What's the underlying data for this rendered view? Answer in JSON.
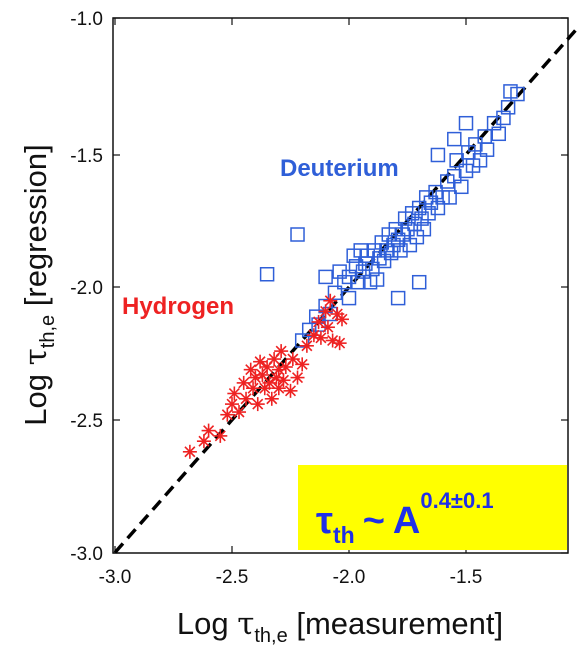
{
  "colors": {
    "hydrogen": "#ee2222",
    "deuterium": "#2f5fd8",
    "annotation_box": "#ffff00",
    "annotation_text": "#1f2fe8",
    "fit_line": "#000000"
  },
  "chart_data": {
    "type": "scatter",
    "xlabel": {
      "prefix": "Log ",
      "symbol": "τ",
      "subscript": "th,e",
      "suffix": " [measurement]"
    },
    "ylabel": {
      "prefix": "Log ",
      "symbol": "τ",
      "subscript": "th,e",
      "suffix": " [regression]"
    },
    "xlim": [
      -3.0,
      -1.0
    ],
    "ylim": [
      -3.0,
      -1.0
    ],
    "x_ticks": [
      "-3.0",
      "-2.5",
      "-2.0",
      "-1.5"
    ],
    "y_ticks": [
      "-1.0",
      "-1.5",
      "-2.0",
      "-2.5",
      "-3.0"
    ],
    "grid": false,
    "fit_line": {
      "style": "dashed",
      "points": [
        [
          -3.0,
          -3.0
        ],
        [
          -1.0,
          -1.0
        ]
      ]
    },
    "series": [
      {
        "name": "Hydrogen",
        "marker": "asterisk",
        "points": [
          [
            -2.68,
            -2.62
          ],
          [
            -2.62,
            -2.58
          ],
          [
            -2.6,
            -2.54
          ],
          [
            -2.55,
            -2.56
          ],
          [
            -2.52,
            -2.48
          ],
          [
            -2.5,
            -2.44
          ],
          [
            -2.49,
            -2.4
          ],
          [
            -2.47,
            -2.47
          ],
          [
            -2.45,
            -2.36
          ],
          [
            -2.44,
            -2.42
          ],
          [
            -2.42,
            -2.31
          ],
          [
            -2.41,
            -2.38
          ],
          [
            -2.4,
            -2.34
          ],
          [
            -2.39,
            -2.44
          ],
          [
            -2.38,
            -2.28
          ],
          [
            -2.37,
            -2.33
          ],
          [
            -2.36,
            -2.38
          ],
          [
            -2.35,
            -2.3
          ],
          [
            -2.34,
            -2.36
          ],
          [
            -2.33,
            -2.42
          ],
          [
            -2.32,
            -2.27
          ],
          [
            -2.31,
            -2.34
          ],
          [
            -2.3,
            -2.38
          ],
          [
            -2.3,
            -2.31
          ],
          [
            -2.29,
            -2.24
          ],
          [
            -2.28,
            -2.35
          ],
          [
            -2.27,
            -2.3
          ],
          [
            -2.25,
            -2.39
          ],
          [
            -2.24,
            -2.27
          ],
          [
            -2.22,
            -2.34
          ],
          [
            -2.2,
            -2.29
          ],
          [
            -2.18,
            -2.22
          ],
          [
            -2.15,
            -2.18
          ],
          [
            -2.13,
            -2.13
          ],
          [
            -2.12,
            -2.19
          ],
          [
            -2.1,
            -2.09
          ],
          [
            -2.09,
            -2.15
          ],
          [
            -2.08,
            -2.05
          ],
          [
            -2.07,
            -2.2
          ],
          [
            -2.05,
            -2.1
          ],
          [
            -2.04,
            -2.21
          ],
          [
            -2.03,
            -2.12
          ]
        ]
      },
      {
        "name": "Deuterium",
        "marker": "square",
        "points": [
          [
            -2.2,
            -2.2
          ],
          [
            -2.17,
            -2.16
          ],
          [
            -2.14,
            -2.11
          ],
          [
            -2.13,
            -2.14
          ],
          [
            -2.1,
            -1.96
          ],
          [
            -2.1,
            -2.07
          ],
          [
            -2.08,
            -2.1
          ],
          [
            -2.06,
            -2.02
          ],
          [
            -2.04,
            -1.94
          ],
          [
            -2.02,
            -1.98
          ],
          [
            -2.0,
            -1.96
          ],
          [
            -2.0,
            -2.04
          ],
          [
            -1.98,
            -1.88
          ],
          [
            -1.97,
            -1.92
          ],
          [
            -1.96,
            -1.98
          ],
          [
            -1.95,
            -1.86
          ],
          [
            -1.94,
            -1.94
          ],
          [
            -1.93,
            -1.91
          ],
          [
            -1.92,
            -1.88
          ],
          [
            -1.91,
            -1.98
          ],
          [
            -1.9,
            -1.93
          ],
          [
            -1.89,
            -1.86
          ],
          [
            -1.88,
            -1.97
          ],
          [
            -1.87,
            -1.89
          ],
          [
            -1.86,
            -1.83
          ],
          [
            -1.85,
            -1.9
          ],
          [
            -1.84,
            -1.86
          ],
          [
            -1.83,
            -1.8
          ],
          [
            -1.82,
            -1.87
          ],
          [
            -1.81,
            -1.84
          ],
          [
            -1.8,
            -1.78
          ],
          [
            -1.79,
            -1.82
          ],
          [
            -1.78,
            -1.86
          ],
          [
            -1.77,
            -1.8
          ],
          [
            -1.76,
            -1.74
          ],
          [
            -1.75,
            -1.78
          ],
          [
            -1.74,
            -1.84
          ],
          [
            -1.73,
            -1.72
          ],
          [
            -1.72,
            -1.76
          ],
          [
            -1.71,
            -1.81
          ],
          [
            -1.7,
            -1.7
          ],
          [
            -1.69,
            -1.74
          ],
          [
            -1.68,
            -1.78
          ],
          [
            -1.67,
            -1.66
          ],
          [
            -1.66,
            -1.72
          ],
          [
            -1.65,
            -1.68
          ],
          [
            -1.63,
            -1.64
          ],
          [
            -1.62,
            -1.7
          ],
          [
            -1.6,
            -1.66
          ],
          [
            -1.58,
            -1.6
          ],
          [
            -1.57,
            -1.66
          ],
          [
            -1.55,
            -1.58
          ],
          [
            -1.54,
            -1.52
          ],
          [
            -1.52,
            -1.62
          ],
          [
            -1.5,
            -1.56
          ],
          [
            -1.49,
            -1.49
          ],
          [
            -1.47,
            -1.54
          ],
          [
            -1.46,
            -1.46
          ],
          [
            -1.44,
            -1.52
          ],
          [
            -1.42,
            -1.43
          ],
          [
            -1.41,
            -1.48
          ],
          [
            -1.38,
            -1.38
          ],
          [
            -1.36,
            -1.42
          ],
          [
            -1.34,
            -1.36
          ],
          [
            -1.32,
            -1.32
          ],
          [
            -1.31,
            -1.26
          ],
          [
            -1.28,
            -1.27
          ],
          [
            -2.22,
            -1.8
          ],
          [
            -2.35,
            -1.95
          ],
          [
            -1.79,
            -2.04
          ],
          [
            -1.7,
            -1.98
          ],
          [
            -1.62,
            -1.5
          ],
          [
            -1.55,
            -1.44
          ],
          [
            -1.5,
            -1.38
          ]
        ]
      }
    ],
    "annotations": {
      "hydrogen_label": "Hydrogen",
      "deuterium_label": "Deuterium",
      "formula": {
        "symbol": "τ",
        "symbol_sub": "th",
        "relation": "~",
        "variable": "A",
        "exponent": "0.4±0.1"
      }
    }
  }
}
